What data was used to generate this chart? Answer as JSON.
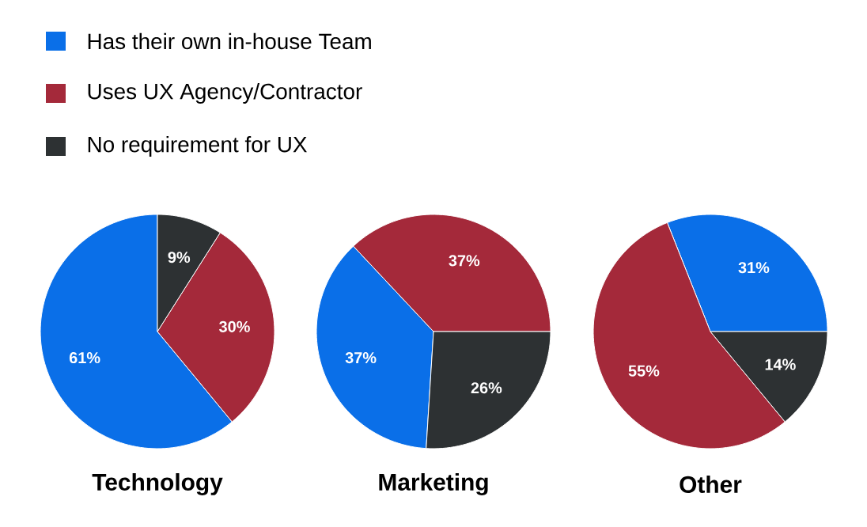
{
  "chart_data": [
    {
      "type": "pie",
      "title": "Technology",
      "categories": [
        "Has their own in-house Team",
        "Uses UX Agency/Contractor",
        "No requirement for UX"
      ],
      "values": [
        61,
        30,
        9
      ],
      "value_labels": [
        "61%",
        "30%",
        "9%"
      ],
      "colors": [
        "#0a6fe8",
        "#a4293a",
        "#2d3133"
      ],
      "legend": "top"
    },
    {
      "type": "pie",
      "title": "Marketing",
      "categories": [
        null,
        null,
        null
      ],
      "values": [
        37,
        37,
        26
      ],
      "value_labels": [
        "37%",
        "37%",
        "26%"
      ],
      "colors": [
        "#0a6fe8",
        "#a4293a",
        "#2d3133"
      ]
    },
    {
      "type": "pie",
      "title": "Other",
      "categories": [
        null,
        null,
        null
      ],
      "values": [
        31,
        55,
        14
      ],
      "value_labels": [
        "31%",
        "55%",
        "14%"
      ],
      "colors": [
        "#0a6fe8",
        "#a4293a",
        "#2d3133"
      ]
    }
  ]
}
